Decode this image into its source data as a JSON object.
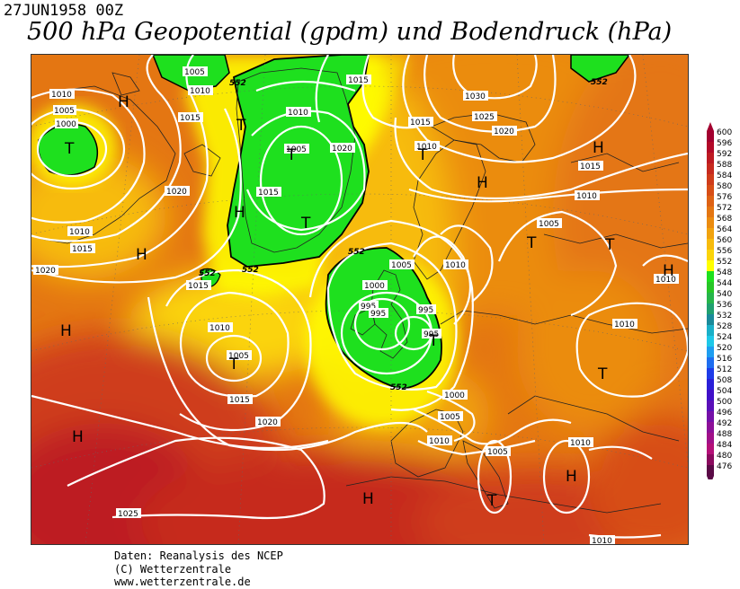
{
  "header": {
    "date": "27JUN1958 00Z",
    "title": "500 hPa Geopotential (gpdm) und Bodendruck (hPa)"
  },
  "legend": {
    "labels": [
      "600",
      "596",
      "592",
      "588",
      "584",
      "580",
      "576",
      "572",
      "568",
      "564",
      "560",
      "556",
      "552",
      "548",
      "544",
      "540",
      "536",
      "532",
      "528",
      "524",
      "520",
      "516",
      "512",
      "508",
      "504",
      "500",
      "496",
      "492",
      "488",
      "484",
      "480",
      "476"
    ],
    "colors": [
      "#a3002f",
      "#b20a28",
      "#bd1a22",
      "#c62a1e",
      "#cf3c1a",
      "#d74e16",
      "#de6214",
      "#e47612",
      "#eb8c10",
      "#f1a30e",
      "#f7bb0c",
      "#fbd40a",
      "#ffff00",
      "#1ee01e",
      "#27c627",
      "#26b54b",
      "#20a070",
      "#1a8a9a",
      "#1ab0c8",
      "#1ec8e8",
      "#1e9ef0",
      "#1e6ef0",
      "#1e3ce8",
      "#2a20d8",
      "#4010c8",
      "#5a10b8",
      "#7410a8",
      "#8c1098",
      "#a01088",
      "#b41078",
      "#8a0a5e",
      "#5a0a46"
    ]
  },
  "map": {
    "isobar_labels": [
      {
        "text": "1010"
      },
      {
        "text": "1005"
      },
      {
        "text": "1000"
      },
      {
        "text": "1005"
      },
      {
        "text": "1010"
      },
      {
        "text": "1015"
      },
      {
        "text": "1010"
      },
      {
        "text": "1005"
      },
      {
        "text": "1015"
      },
      {
        "text": "1020"
      },
      {
        "text": "1015"
      },
      {
        "text": "1030"
      },
      {
        "text": "1025"
      },
      {
        "text": "1020"
      },
      {
        "text": "1015"
      },
      {
        "text": "1010"
      },
      {
        "text": "1015"
      },
      {
        "text": "1010"
      },
      {
        "text": "1020"
      },
      {
        "text": "1010"
      },
      {
        "text": "1015"
      },
      {
        "text": "1020"
      },
      {
        "text": "1015"
      },
      {
        "text": "1005"
      },
      {
        "text": "1010"
      },
      {
        "text": "1000"
      },
      {
        "text": "995"
      },
      {
        "text": "995"
      },
      {
        "text": "995"
      },
      {
        "text": "995"
      },
      {
        "text": "1010"
      },
      {
        "text": "1005"
      },
      {
        "text": "1015"
      },
      {
        "text": "1020"
      },
      {
        "text": "1000"
      },
      {
        "text": "1005"
      },
      {
        "text": "1010"
      },
      {
        "text": "1005"
      },
      {
        "text": "1010"
      },
      {
        "text": "1010"
      },
      {
        "text": "1010"
      },
      {
        "text": "1025"
      },
      {
        "text": "1005"
      },
      {
        "text": "1010"
      }
    ],
    "contour_552_labels": [
      "552",
      "552",
      "552",
      "552",
      "552",
      "552"
    ],
    "pressure_centers": [
      {
        "type": "H"
      },
      {
        "type": "T"
      },
      {
        "type": "T"
      },
      {
        "type": "T"
      },
      {
        "type": "T"
      },
      {
        "type": "H"
      },
      {
        "type": "T"
      },
      {
        "type": "T"
      },
      {
        "type": "H"
      },
      {
        "type": "H"
      },
      {
        "type": "H"
      },
      {
        "type": "T"
      },
      {
        "type": "T"
      },
      {
        "type": "H"
      },
      {
        "type": "H"
      },
      {
        "type": "H"
      },
      {
        "type": "T"
      },
      {
        "type": "H"
      },
      {
        "type": "T"
      },
      {
        "type": "T"
      },
      {
        "type": "H"
      },
      {
        "type": "T"
      },
      {
        "type": "H"
      },
      {
        "type": "T"
      }
    ]
  },
  "credits": {
    "line1": "Daten: Reanalysis des NCEP",
    "line2": "(C) Wetterzentrale",
    "line3": "www.wetterzentrale.de"
  }
}
